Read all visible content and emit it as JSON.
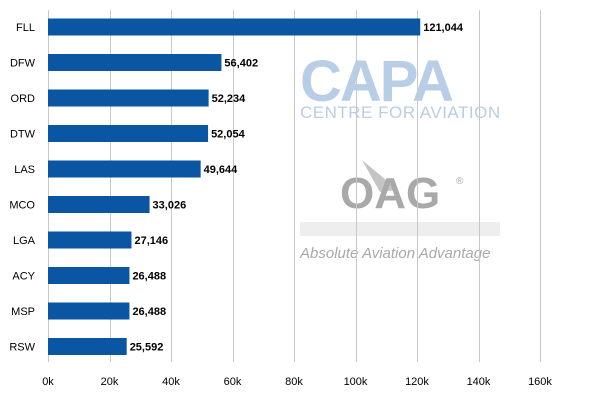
{
  "chart_data": {
    "type": "bar",
    "orientation": "horizontal",
    "categories": [
      "FLL",
      "DFW",
      "ORD",
      "DTW",
      "LAS",
      "MCO",
      "LGA",
      "ACY",
      "MSP",
      "RSW"
    ],
    "values": [
      121044,
      56402,
      52234,
      52054,
      49644,
      33026,
      27146,
      26488,
      26488,
      25592
    ],
    "value_labels": [
      "121,044",
      "56,402",
      "52,234",
      "52,054",
      "49,644",
      "33,026",
      "27,146",
      "26,488",
      "26,488",
      "25,592"
    ],
    "xlim": [
      0,
      160000
    ],
    "x_ticks": [
      0,
      20000,
      40000,
      60000,
      80000,
      100000,
      120000,
      140000,
      160000
    ],
    "x_tick_labels": [
      "0k",
      "20k",
      "40k",
      "60k",
      "80k",
      "100k",
      "120k",
      "140k",
      "160k"
    ],
    "grid": "vertical",
    "legend": "none",
    "title": "",
    "xlabel": "",
    "ylabel": ""
  },
  "colors": {
    "bar": "#0a56a3",
    "grid": "#c8c8c8",
    "capa_watermark": "#b8cee6",
    "oag_watermark": "#a9a9a9"
  },
  "watermark": {
    "capa": "CAPA",
    "capa_sub": "CENTRE FOR AVIATION",
    "oag": "OAG",
    "oag_mark": "®",
    "oag_tagline": "Absolute Aviation Advantage"
  }
}
